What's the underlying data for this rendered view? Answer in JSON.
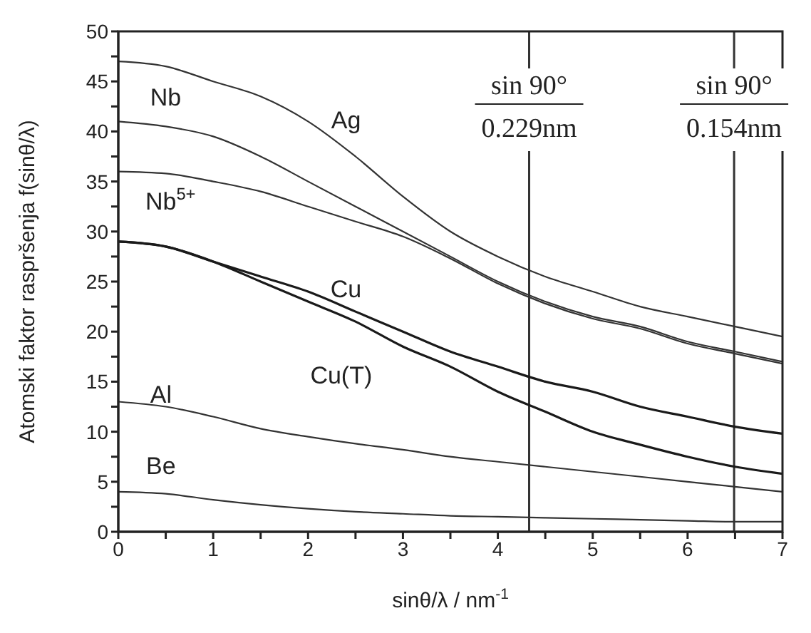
{
  "chart_data": {
    "type": "line",
    "xlabel": "sinθ/λ / nm$^{-1}$",
    "ylabel": "Atomski faktor raspršenja f(sinθ/λ)",
    "x": [
      0,
      0.5,
      1,
      1.5,
      2,
      2.5,
      3,
      3.5,
      4,
      4.5,
      5,
      5.5,
      6,
      6.5,
      7
    ],
    "series": [
      {
        "name": "Ag",
        "color": "#333333",
        "values": [
          47,
          46.5,
          45,
          43.5,
          41,
          37.5,
          33.5,
          30,
          27.5,
          25.5,
          24,
          22.5,
          21.5,
          20.5,
          19.5
        ]
      },
      {
        "name": "Nb",
        "color": "#333333",
        "values": [
          41,
          40.5,
          39.5,
          37.5,
          35,
          32.5,
          30,
          27.5,
          25,
          23,
          21.5,
          20.5,
          19,
          18,
          17
        ]
      },
      {
        "name": "Nb$^{5+}$",
        "color": "#333333",
        "values": [
          36,
          35.8,
          35,
          34,
          32.5,
          31,
          29.5,
          27.3,
          24.8,
          22.8,
          21.3,
          20.3,
          18.8,
          17.8,
          16.8
        ]
      },
      {
        "name": "Cu",
        "color": "#1a1a1a",
        "values": [
          29,
          28.5,
          27,
          25.5,
          24,
          22,
          20,
          18,
          16.5,
          15,
          14,
          12.5,
          11.5,
          10.5,
          9.8
        ]
      },
      {
        "name": "Cu(T)",
        "color": "#1a1a1a",
        "values": [
          29,
          28.5,
          27,
          25,
          23,
          21,
          18.5,
          16.5,
          14,
          12,
          10,
          8.7,
          7.5,
          6.5,
          5.8
        ]
      },
      {
        "name": "Al",
        "color": "#333333",
        "values": [
          13,
          12.5,
          11.5,
          10.3,
          9.5,
          8.8,
          8.2,
          7.5,
          7,
          6.5,
          6,
          5.5,
          5,
          4.5,
          4
        ]
      },
      {
        "name": "Be",
        "color": "#333333",
        "values": [
          4,
          3.8,
          3.2,
          2.7,
          2.3,
          2,
          1.8,
          1.6,
          1.5,
          1.4,
          1.3,
          1.2,
          1.1,
          1,
          1
        ]
      }
    ],
    "xlim": [
      0,
      7
    ],
    "ylim": [
      0,
      50
    ],
    "xticks": [
      0,
      {
        "value": 0.5,
        "label": null
      },
      1,
      {
        "value": 1.5,
        "label": null
      },
      2,
      {
        "value": 2.5,
        "label": null
      },
      3,
      {
        "value": 3.5,
        "label": null
      },
      4,
      {
        "value": 4.5,
        "label": null
      },
      5,
      {
        "value": 5.5,
        "label": null
      },
      6,
      {
        "value": 6.5,
        "label": null
      },
      7
    ],
    "yticks": [
      0,
      {
        "value": 2.5,
        "label": null
      },
      5,
      {
        "value": 7.5,
        "label": null
      },
      10,
      {
        "value": 12.5,
        "label": null
      },
      15,
      {
        "value": 17.5,
        "label": null
      },
      20,
      {
        "value": 22.5,
        "label": null
      },
      25,
      {
        "value": 27.5,
        "label": null
      },
      30,
      {
        "value": 32.5,
        "label": null
      },
      35,
      {
        "value": 37.5,
        "label": null
      },
      40,
      {
        "value": 42.5,
        "label": null
      },
      45,
      {
        "value": 47.5,
        "label": null
      },
      50
    ],
    "ref_lines": [
      {
        "axis": "x",
        "value": 4.33,
        "label": "sin 90°\n0.229nm",
        "color": "#333333"
      },
      {
        "axis": "x",
        "value": 6.49,
        "label": "sin 90°\n0.154nm",
        "color": "#333333"
      }
    ],
    "grid": false,
    "legend": false,
    "marker": "none",
    "line_style": "solid"
  }
}
